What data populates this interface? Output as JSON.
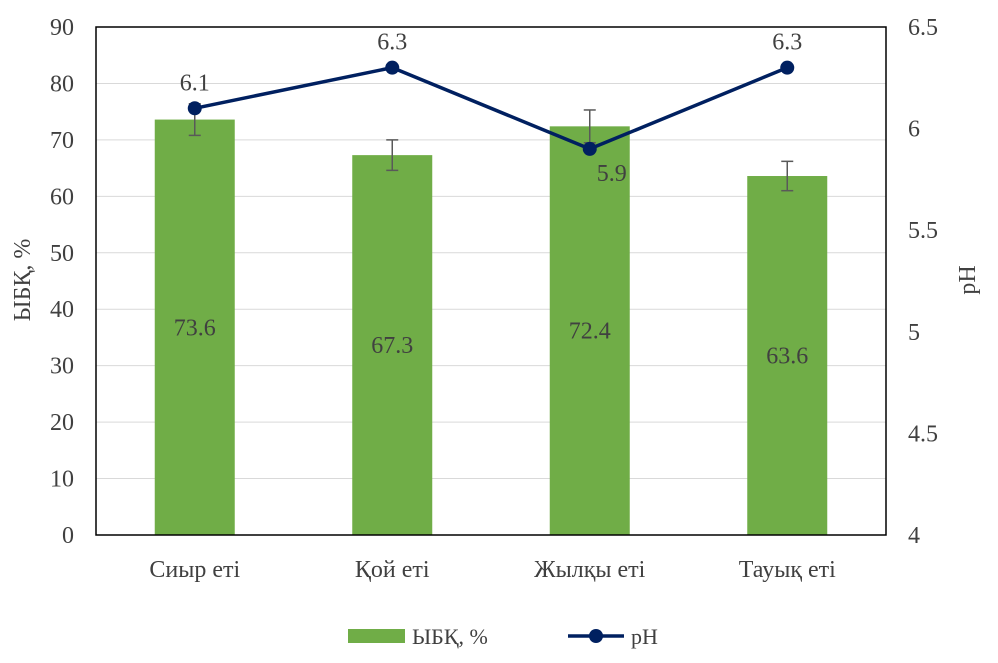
{
  "chart_data": {
    "type": "bar+line",
    "categories": [
      "Сиыр еті",
      "Қой еті",
      "Жылқы еті",
      "Тауық еті"
    ],
    "series": [
      {
        "name": "ЫБҚ, %",
        "type": "bar",
        "axis": "left",
        "color": "#70AD47",
        "values": [
          73.6,
          67.3,
          72.4,
          63.6
        ],
        "labels": [
          "73.6",
          "67.3",
          "72.4",
          "63.6"
        ],
        "error": [
          2.8,
          2.7,
          2.9,
          2.6
        ]
      },
      {
        "name": "pH",
        "type": "line",
        "axis": "right",
        "color": "#002060",
        "values": [
          6.1,
          6.3,
          5.9,
          6.3
        ],
        "labels": [
          "6.1",
          "6.3",
          "5.9",
          "6.3"
        ]
      }
    ],
    "ylabel": "ЫБҚ, %",
    "ylim": [
      0,
      90
    ],
    "yticks": [
      "0",
      "10",
      "20",
      "30",
      "40",
      "50",
      "60",
      "70",
      "80",
      "90"
    ],
    "y2label": "pH",
    "y2lim": [
      4,
      6.5
    ],
    "y2ticks": [
      "4",
      "4.5",
      "5",
      "5.5",
      "6",
      "6.5"
    ],
    "legend_position": "bottom",
    "grid": true
  }
}
